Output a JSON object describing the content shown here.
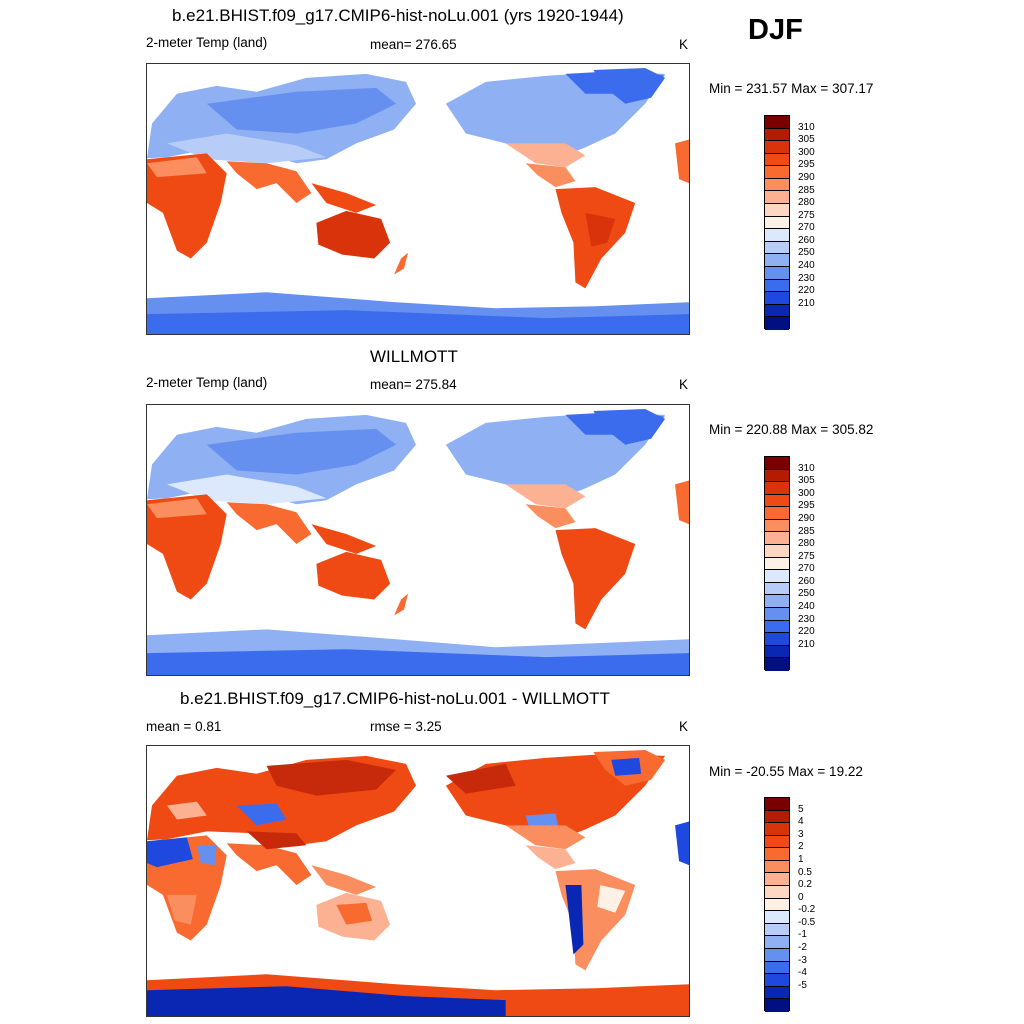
{
  "season": "DJF",
  "panels": [
    {
      "title": "b.e21.BHIST.f09_g17.CMIP6-hist-noLu.001 (yrs 1920-1944)",
      "left_label": "2-meter Temp (land)",
      "center_label": "mean= 276.65",
      "units": "K",
      "minmax": "Min = 231.57 Max = 307.17",
      "ticks": [
        "310",
        "305",
        "300",
        "295",
        "290",
        "285",
        "280",
        "275",
        "270",
        "260",
        "250",
        "240",
        "230",
        "220",
        "210"
      ]
    },
    {
      "title": "WILLMOTT",
      "left_label": "2-meter Temp (land)",
      "center_label": "mean= 275.84",
      "units": "K",
      "minmax": "Min = 220.88 Max = 305.82",
      "ticks": [
        "310",
        "305",
        "300",
        "295",
        "290",
        "285",
        "280",
        "275",
        "270",
        "260",
        "250",
        "240",
        "230",
        "220",
        "210"
      ]
    },
    {
      "title": "b.e21.BHIST.f09_g17.CMIP6-hist-noLu.001 - WILLMOTT",
      "left_label": "mean =   0.81",
      "center_label": "rmse =   3.25",
      "units": "K",
      "minmax": "Min = -20.55 Max =  19.22",
      "ticks": [
        "5",
        "4",
        "3",
        "2",
        "1",
        "0.5",
        "0.2",
        "0",
        "-0.2",
        "-0.5",
        "-1",
        "-2",
        "-3",
        "-4",
        "-5"
      ]
    }
  ],
  "colors": {
    "palette": [
      "#7a0000",
      "#b51b00",
      "#d8330a",
      "#ef4a14",
      "#f86a30",
      "#fa8e5e",
      "#fcb292",
      "#fdd7c1",
      "#fdf0e4",
      "#dce8fb",
      "#b7cdf7",
      "#8fb0f3",
      "#6690f0",
      "#3c6cee",
      "#1e48de",
      "#0a27b4",
      "#001080"
    ],
    "warm": "#e8431c",
    "warm_dark": "#c72a0a",
    "cool_light": "#b8cdf5",
    "cool": "#7fa5f0",
    "cool_dark": "#3f6ef0",
    "pale": "#f6b59a"
  }
}
